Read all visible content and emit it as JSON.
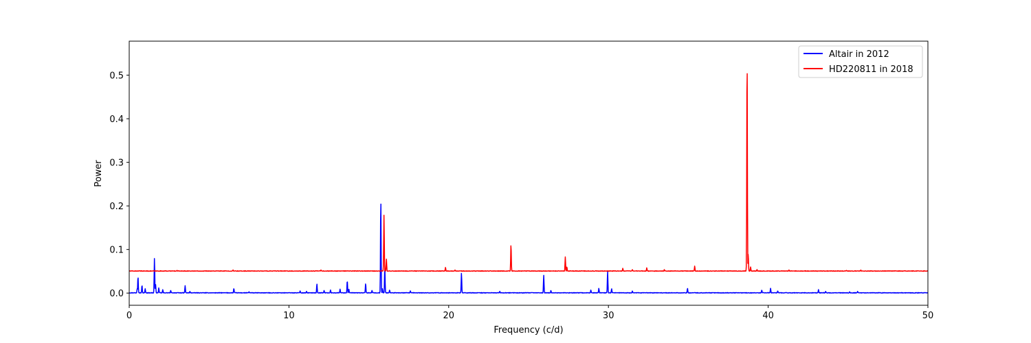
{
  "chart_data": {
    "type": "line",
    "title": "",
    "xlabel": "Frequency (c/d)",
    "ylabel": "Power",
    "xlim": [
      0,
      50
    ],
    "ylim": [
      -0.028,
      0.578
    ],
    "xticks": [
      0,
      10,
      20,
      30,
      40,
      50
    ],
    "yticks": [
      0.0,
      0.1,
      0.2,
      0.3,
      0.4,
      0.5
    ],
    "xtick_labels": [
      "0",
      "10",
      "20",
      "30",
      "40",
      "50"
    ],
    "ytick_labels": [
      "0.0",
      "0.1",
      "0.2",
      "0.3",
      "0.4",
      "0.5"
    ],
    "grid": false,
    "legend_position": "top-right",
    "series": [
      {
        "name": "Altair in 2012",
        "color": "#0000ff",
        "baseline": 0.0,
        "peaks": [
          [
            0.5,
            0.01
          ],
          [
            0.55,
            0.038
          ],
          [
            0.8,
            0.018
          ],
          [
            1.0,
            0.01
          ],
          [
            1.58,
            0.08
          ],
          [
            1.65,
            0.02
          ],
          [
            1.85,
            0.012
          ],
          [
            2.1,
            0.008
          ],
          [
            2.6,
            0.006
          ],
          [
            3.5,
            0.017
          ],
          [
            3.8,
            0.004
          ],
          [
            6.55,
            0.011
          ],
          [
            7.5,
            0.003
          ],
          [
            10.7,
            0.005
          ],
          [
            11.1,
            0.004
          ],
          [
            11.75,
            0.021
          ],
          [
            12.2,
            0.006
          ],
          [
            12.6,
            0.007
          ],
          [
            13.2,
            0.009
          ],
          [
            13.65,
            0.029
          ],
          [
            13.75,
            0.009
          ],
          [
            14.8,
            0.022
          ],
          [
            15.2,
            0.006
          ],
          [
            15.75,
            0.216
          ],
          [
            15.85,
            0.01
          ],
          [
            16.0,
            0.06
          ],
          [
            16.3,
            0.007
          ],
          [
            17.6,
            0.005
          ],
          [
            20.8,
            0.046
          ],
          [
            23.2,
            0.004
          ],
          [
            25.95,
            0.041
          ],
          [
            26.4,
            0.006
          ],
          [
            28.9,
            0.007
          ],
          [
            29.4,
            0.011
          ],
          [
            29.95,
            0.05
          ],
          [
            30.2,
            0.01
          ],
          [
            31.5,
            0.005
          ],
          [
            34.95,
            0.011
          ],
          [
            39.6,
            0.007
          ],
          [
            40.15,
            0.011
          ],
          [
            40.6,
            0.005
          ],
          [
            43.15,
            0.008
          ],
          [
            43.6,
            0.004
          ],
          [
            45.1,
            0.003
          ],
          [
            45.6,
            0.004
          ]
        ]
      },
      {
        "name": "HD220811 in 2018",
        "color": "#ff0000",
        "baseline": 0.05,
        "peaks": [
          [
            3.0,
            0.052
          ],
          [
            6.5,
            0.053
          ],
          [
            8.8,
            0.051
          ],
          [
            12.0,
            0.053
          ],
          [
            15.95,
            0.179
          ],
          [
            16.1,
            0.078
          ],
          [
            19.8,
            0.059
          ],
          [
            20.4,
            0.053
          ],
          [
            23.9,
            0.112
          ],
          [
            27.3,
            0.083
          ],
          [
            27.4,
            0.06
          ],
          [
            30.9,
            0.057
          ],
          [
            31.5,
            0.054
          ],
          [
            32.4,
            0.058
          ],
          [
            33.5,
            0.054
          ],
          [
            35.4,
            0.062
          ],
          [
            38.68,
            0.55
          ],
          [
            38.75,
            0.09
          ],
          [
            38.9,
            0.06
          ],
          [
            39.3,
            0.054
          ],
          [
            41.3,
            0.053
          ],
          [
            44.9,
            0.052
          ],
          [
            45.8,
            0.053
          ],
          [
            49.1,
            0.051
          ]
        ]
      }
    ]
  }
}
